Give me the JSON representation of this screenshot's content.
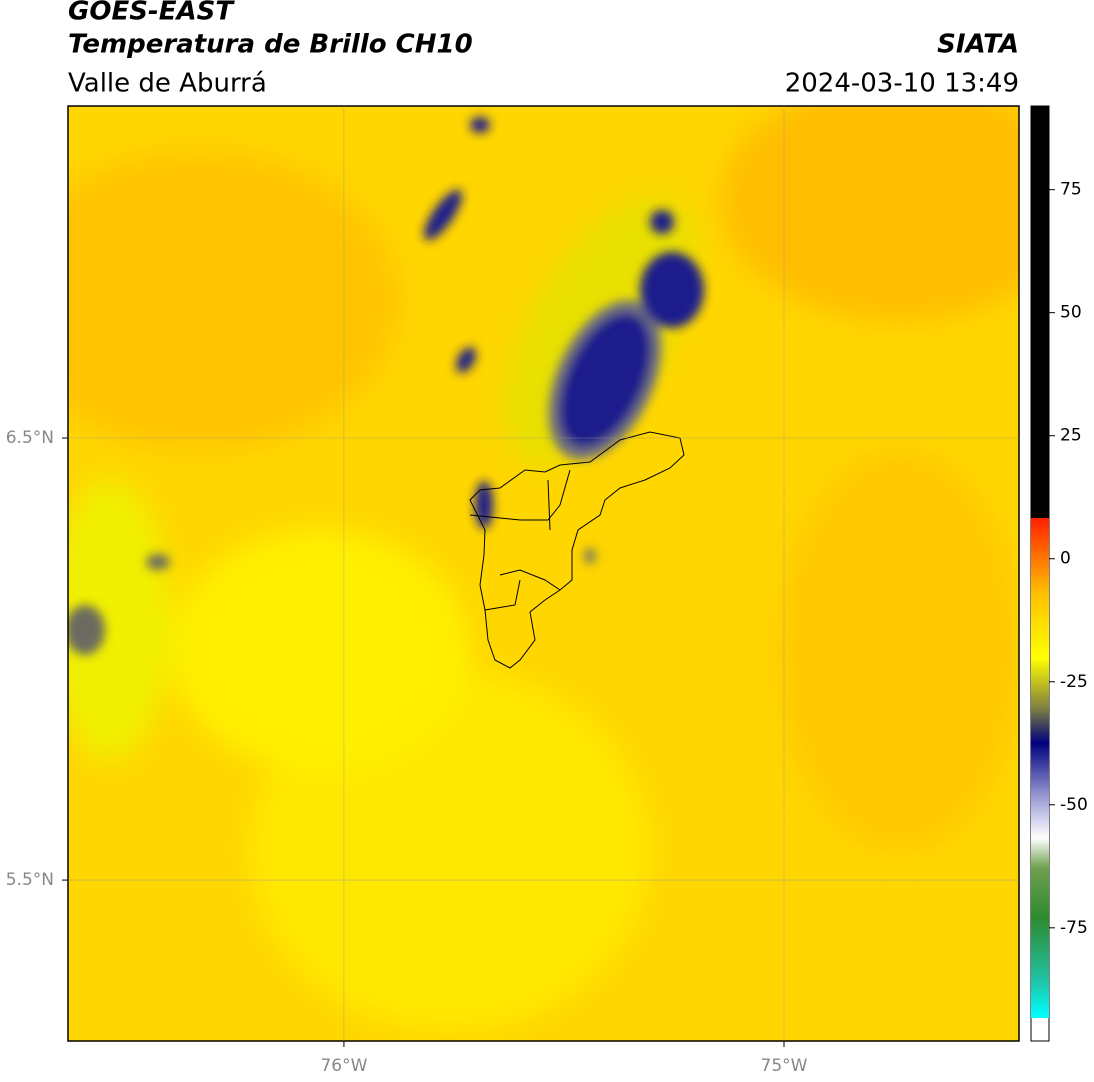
{
  "header": {
    "satellite": "GOES-EAST",
    "product": "Temperatura de Brillo CH10",
    "region": "Valle de Aburrá",
    "agency": "SIATA",
    "datetime": "2024-03-10 13:49"
  },
  "map": {
    "lonlim": [
      -76.627,
      -74.466
    ],
    "latlim": [
      5.136,
      7.251
    ],
    "lonticks": [
      {
        "value": -76,
        "label": "76°W"
      },
      {
        "value": -75,
        "label": "75°W"
      }
    ],
    "latticks": [
      {
        "value": 6.5,
        "label": "6.5°N"
      },
      {
        "value": 5.5,
        "label": "5.5°N"
      }
    ],
    "grid": true
  },
  "colorbar": {
    "lim": [
      -98,
      92
    ],
    "ticks": [
      75,
      50,
      25,
      0,
      -25,
      -50,
      -75
    ]
  }
}
